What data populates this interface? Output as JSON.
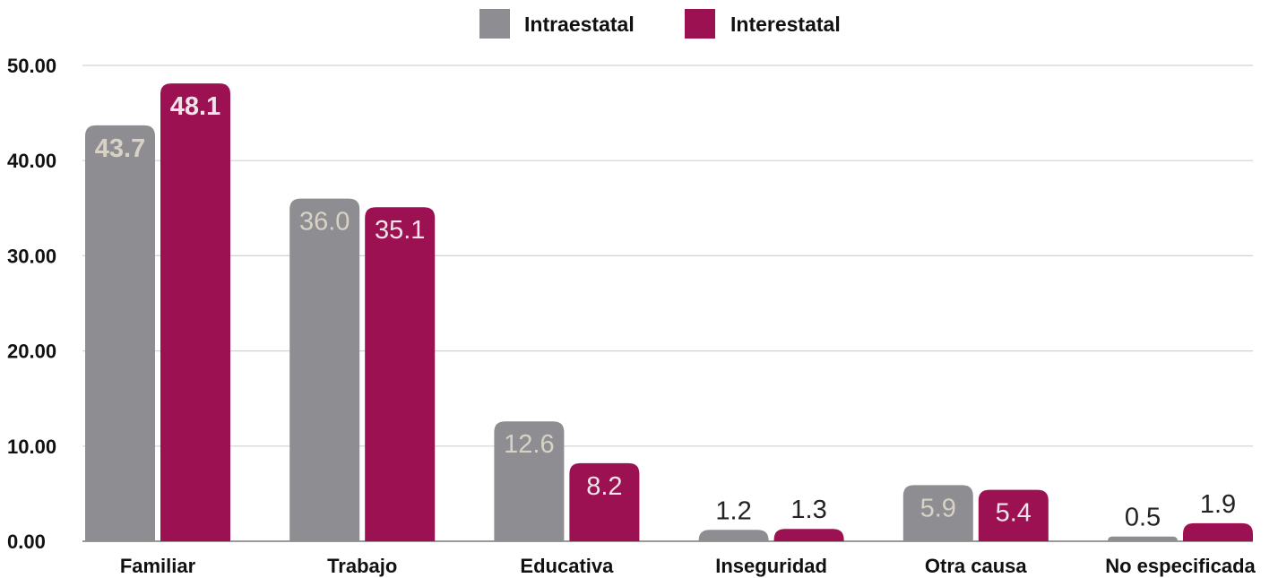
{
  "chart_data": {
    "type": "bar",
    "categories": [
      "Familiar",
      "Trabajo",
      "Educativa",
      "Inseguridad",
      "Otra causa",
      "No especificada"
    ],
    "series": [
      {
        "name": "Intraestatal",
        "color": "#8e8e92",
        "values": [
          43.7,
          36.0,
          12.6,
          1.2,
          5.9,
          0.5
        ],
        "labels": [
          "43.7",
          "36.0",
          "12.6",
          "1.2",
          "5.9",
          "0.5"
        ]
      },
      {
        "name": "Interestatal",
        "color": "#9b1152",
        "values": [
          48.1,
          35.1,
          8.2,
          1.3,
          5.4,
          1.9
        ],
        "labels": [
          "48.1",
          "35.1",
          "8.2",
          "1.3",
          "5.4",
          "1.9"
        ]
      }
    ],
    "ylim": [
      0,
      50
    ],
    "yticks": [
      0,
      10,
      20,
      30,
      40,
      50
    ],
    "ytick_labels": [
      "0.00",
      "10.00",
      "20.00",
      "30.00",
      "40.00",
      "50.00"
    ],
    "grid": true,
    "legend": "top-center",
    "title": "",
    "xlabel": "",
    "ylabel": ""
  }
}
